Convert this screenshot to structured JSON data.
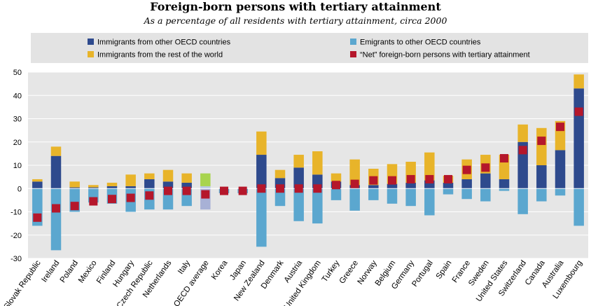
{
  "chart_data": {
    "type": "bar",
    "title": "Foreign-born persons with tertiary attainment",
    "subtitle": "As a percentage of all residents with tertiary attainment, circa 2000",
    "xlabel": "",
    "ylabel": "",
    "ylim": [
      -30,
      50
    ],
    "yticks": [
      50,
      40,
      30,
      20,
      10,
      0,
      -10,
      -20,
      -30
    ],
    "grid": true,
    "legend_position": "top",
    "legend": [
      {
        "key": "oecd",
        "label": "Immigrants from other OECD countries",
        "color": "#2e4a8d"
      },
      {
        "key": "emig",
        "label": "Emigrants to other OECD countries",
        "color": "#5ba7cf"
      },
      {
        "key": "rest",
        "label": "Immigrants from the rest of the world",
        "color": "#e8b42a"
      },
      {
        "key": "net",
        "label": "“Net” foreign-born persons with tertiary attainment",
        "color": "#b5172b"
      }
    ],
    "categories": [
      "Slovak Republic",
      "Ireland",
      "Poland",
      "Mexico",
      "Finland",
      "Hungary",
      "Czech Republic",
      "Netherlands",
      "Italy",
      "OECD average",
      "Korea",
      "Japan",
      "New Zealand",
      "Denmark",
      "Austria",
      "United Kingdom",
      "Turkey",
      "Greece",
      "Norway",
      "Belgium",
      "Germany",
      "Portugal",
      "Spain",
      "France",
      "Sweden",
      "United States",
      "Switzerland",
      "Canada",
      "Australia",
      "Luxembourg"
    ],
    "highlight_category": "OECD average",
    "highlight_colors": {
      "oecd": "#b6c7e0",
      "rest": "#a8d44e",
      "emig": "#a8b1d6"
    },
    "series": [
      {
        "name": "Immigrants from other OECD countries",
        "key": "oecd",
        "values": [
          3,
          14,
          0.5,
          0.5,
          1,
          1,
          4,
          3,
          2.5,
          1,
          0,
          0,
          14.5,
          4.5,
          9,
          6,
          3,
          1.5,
          1.5,
          2,
          2.5,
          3.5,
          2.5,
          4,
          6.5,
          4,
          20,
          10,
          16.5,
          43
        ]
      },
      {
        "name": "Immigrants from the rest of the world",
        "key": "rest",
        "values": [
          1,
          4,
          2.5,
          1,
          1.5,
          5,
          2.5,
          5,
          4,
          5.5,
          0,
          0,
          10,
          3.5,
          5.5,
          10,
          3.5,
          11,
          7,
          8.5,
          9,
          12,
          3,
          8.5,
          8,
          10.5,
          7.5,
          16,
          12.5,
          6
        ]
      },
      {
        "name": "Emigrants to other OECD countries",
        "key": "emig",
        "values": [
          -16,
          -26.5,
          -10,
          -6,
          -6.5,
          -10,
          -9,
          -9,
          -7.5,
          -9,
          -2,
          -2,
          -25,
          -7.5,
          -14,
          -15,
          -5,
          -9.5,
          -5,
          -6.5,
          -7.5,
          -11.5,
          -2.5,
          -4.5,
          -5.5,
          -1,
          -11,
          -5.5,
          -3,
          -16
        ]
      },
      {
        "name": "“Net” foreign-born persons with tertiary attainment",
        "key": "net",
        "values": [
          -12.5,
          -8.5,
          -7.5,
          -5.5,
          -4.5,
          -4,
          -3,
          -1,
          -1,
          -2.5,
          -1,
          -1,
          0,
          0,
          0,
          0,
          1.5,
          2,
          3.5,
          3.5,
          4,
          4,
          4,
          8,
          9,
          13,
          16.5,
          20.5,
          26.5,
          33
        ]
      }
    ]
  }
}
